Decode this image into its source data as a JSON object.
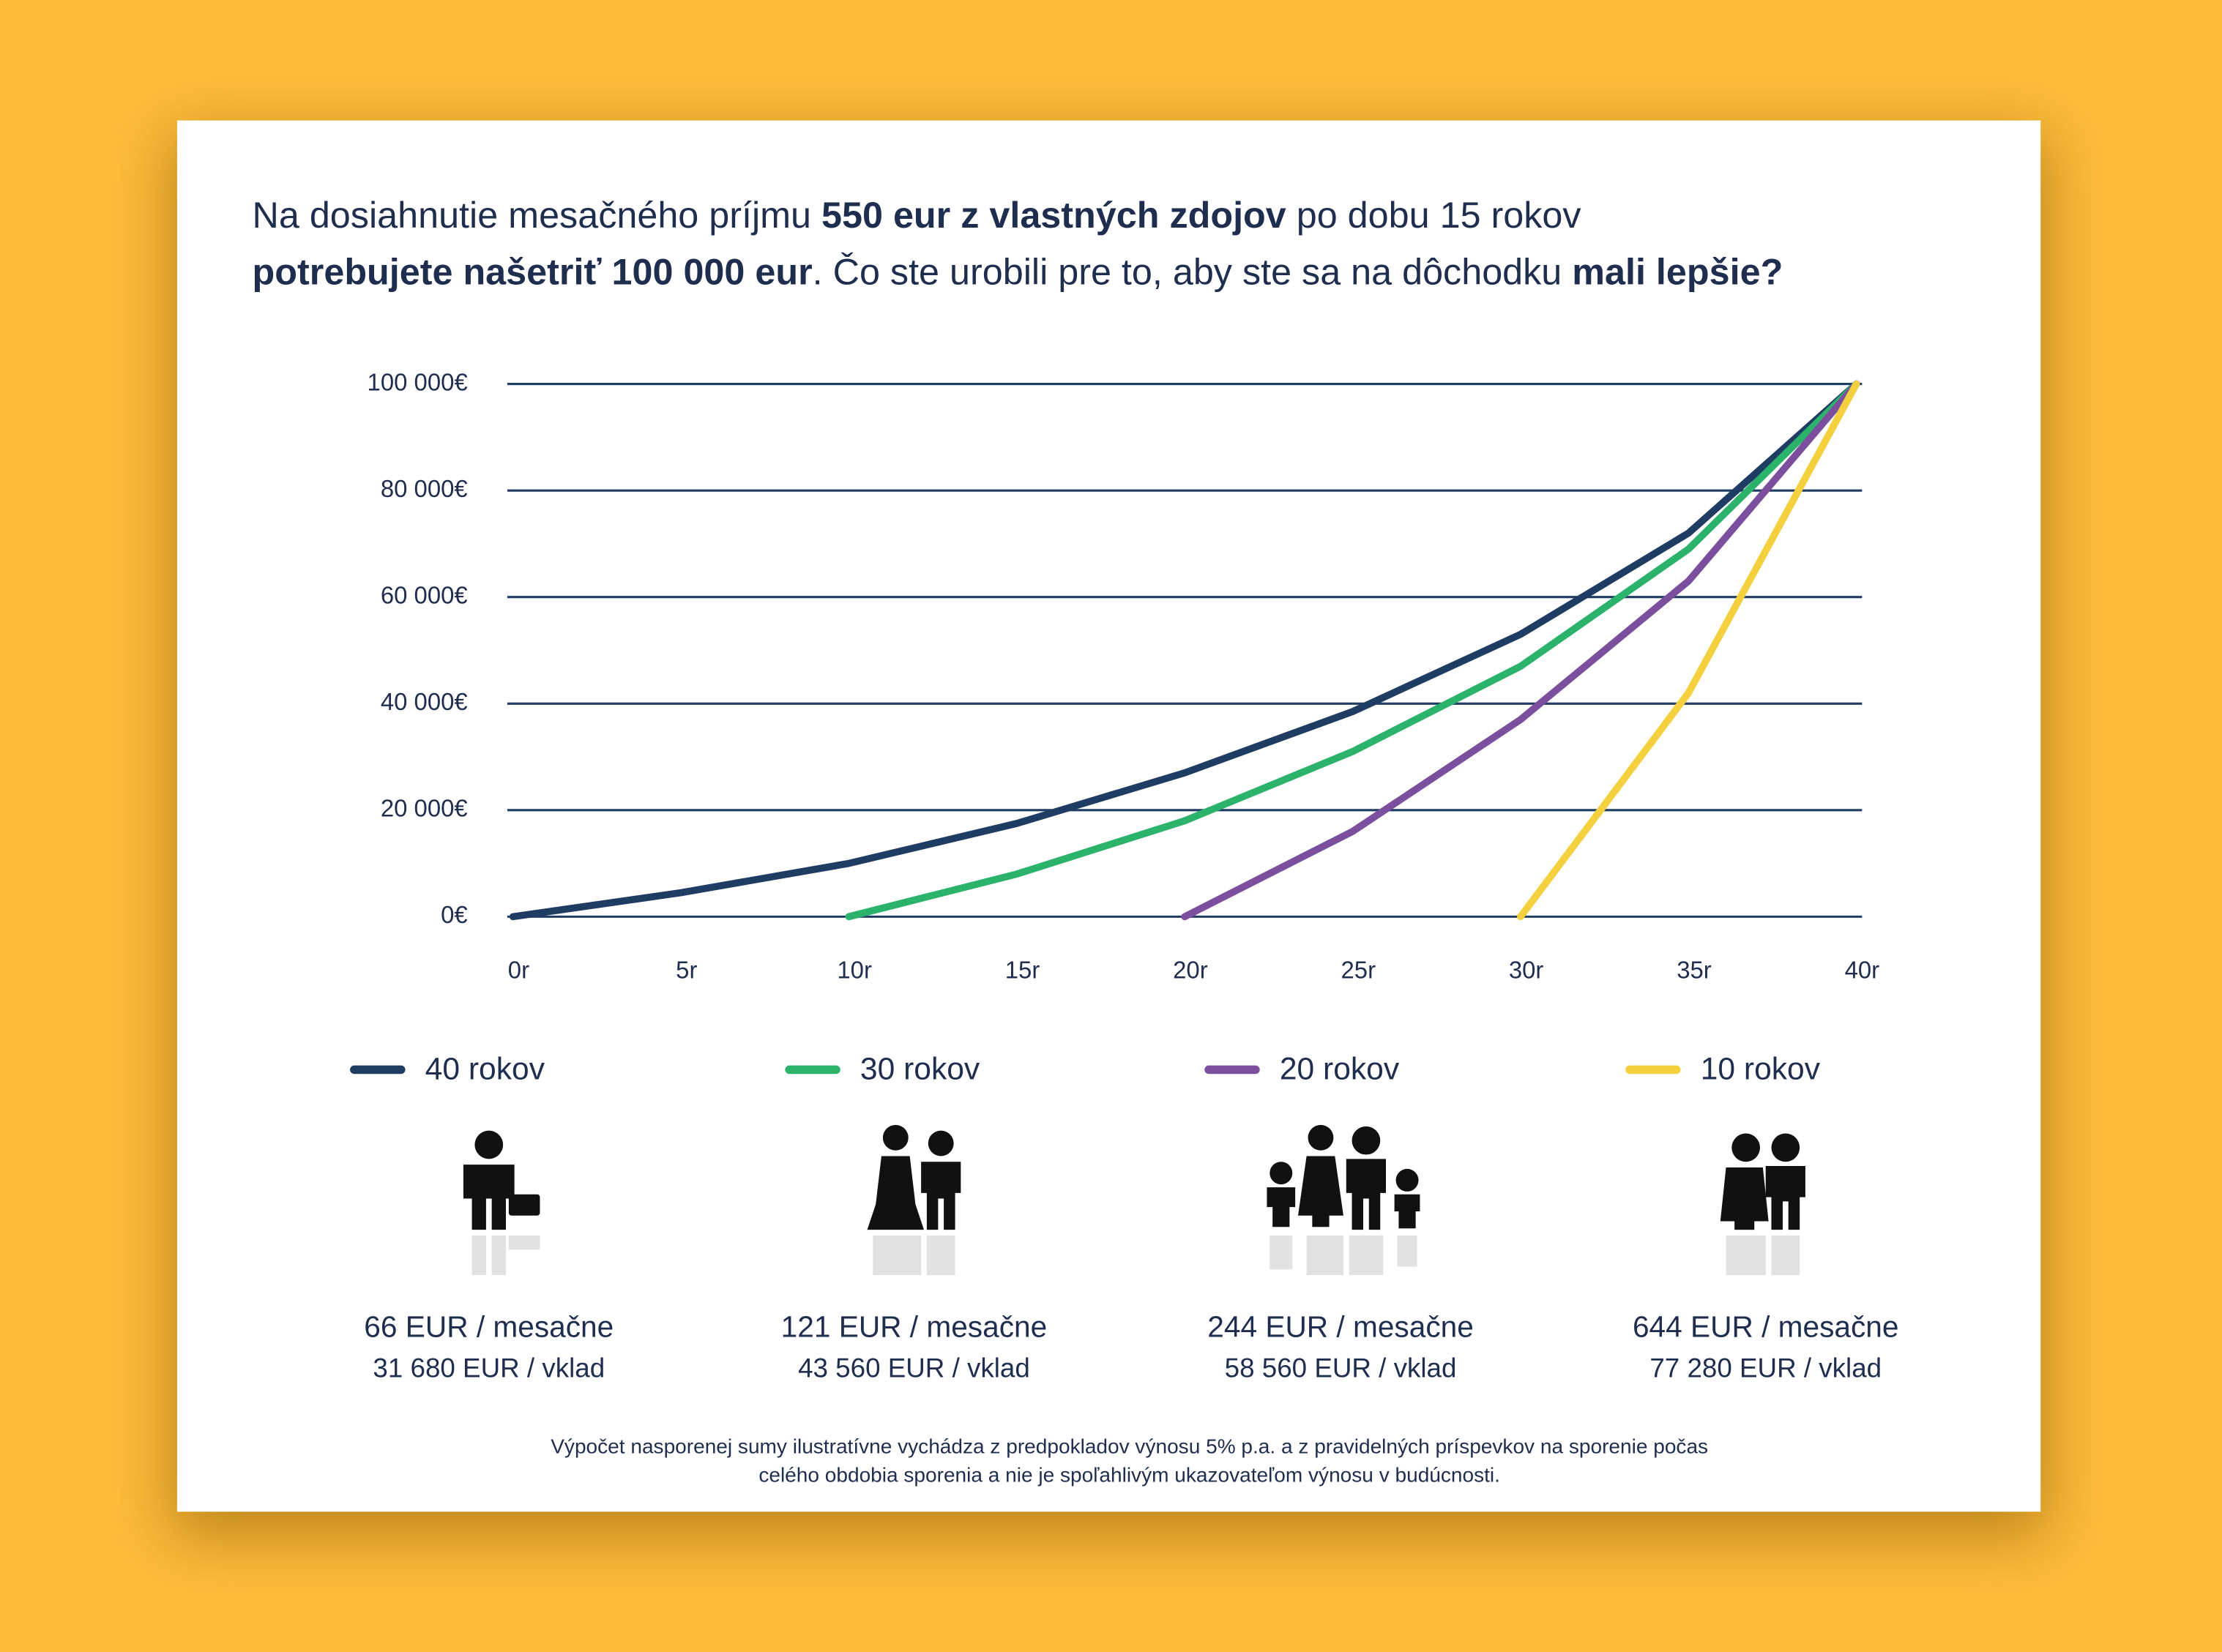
{
  "chart_data": {
    "type": "line",
    "title_lines": [
      [
        {
          "text": "Na dosiahnutie mesačného príjmu ",
          "bold": false
        },
        {
          "text": "550 eur z vlastných zdojov",
          "bold": true
        },
        {
          "text": " po dobu 15 rokov",
          "bold": false
        }
      ],
      [
        {
          "text": "potrebujete našetriť 100 000 eur",
          "bold": true
        },
        {
          "text": ". Čo ste urobili pre to, aby ste sa na dôchodku ",
          "bold": false
        },
        {
          "text": "mali lepšie?",
          "bold": true
        }
      ]
    ],
    "x": [
      0,
      5,
      10,
      15,
      20,
      25,
      30,
      35,
      40
    ],
    "series": [
      {
        "name": "40 rokov",
        "color": "#1f3d63",
        "values": [
          0,
          4500,
          10000,
          17500,
          27000,
          38500,
          53000,
          72000,
          100000
        ]
      },
      {
        "name": "30 rokov",
        "color": "#2bb36b",
        "values": [
          null,
          null,
          0,
          8000,
          18000,
          31000,
          47000,
          69000,
          100000
        ]
      },
      {
        "name": "20 rokov",
        "color": "#7b4f9e",
        "values": [
          null,
          null,
          null,
          null,
          0,
          16000,
          37000,
          63000,
          100000
        ]
      },
      {
        "name": "10 rokov",
        "color": "#f4d03f",
        "values": [
          null,
          null,
          null,
          null,
          null,
          null,
          0,
          42000,
          100000
        ]
      }
    ],
    "xlim": [
      0,
      40
    ],
    "xticks": [
      {
        "value": 0,
        "label": "0r"
      },
      {
        "value": 5,
        "label": "5r"
      },
      {
        "value": 10,
        "label": "10r"
      },
      {
        "value": 15,
        "label": "15r"
      },
      {
        "value": 20,
        "label": "20r"
      },
      {
        "value": 25,
        "label": "25r"
      },
      {
        "value": 30,
        "label": "30r"
      },
      {
        "value": 35,
        "label": "35r"
      },
      {
        "value": 40,
        "label": "40r"
      }
    ],
    "ylim": [
      0,
      100000
    ],
    "yticks": [
      {
        "value": 0,
        "label": "0€"
      },
      {
        "value": 20000,
        "label": "20 000€"
      },
      {
        "value": 40000,
        "label": "40 000€"
      },
      {
        "value": 60000,
        "label": "60 000€"
      },
      {
        "value": 80000,
        "label": "80 000€"
      },
      {
        "value": 100000,
        "label": "100 000€"
      }
    ],
    "grid": true,
    "captions": [
      {
        "monthly": "66 EUR / mesačne",
        "deposit": "31 680 EUR / vklad"
      },
      {
        "monthly": "121 EUR / mesačne",
        "deposit": "43 560 EUR / vklad"
      },
      {
        "monthly": "244 EUR / mesačne",
        "deposit": "58 560 EUR / vklad"
      },
      {
        "monthly": "644 EUR / mesačne",
        "deposit": "77 280 EUR / vklad"
      }
    ],
    "footnote": [
      "Výpočet nasporenej sumy ilustratívne vychádza z predpokladov výnosu 5% p.a. a z pravidelných príspevkov na sporenie počas",
      "celého obdobia sporenia a nie je spoľahlivým ukazovateľom výnosu v budúcnosti."
    ]
  }
}
